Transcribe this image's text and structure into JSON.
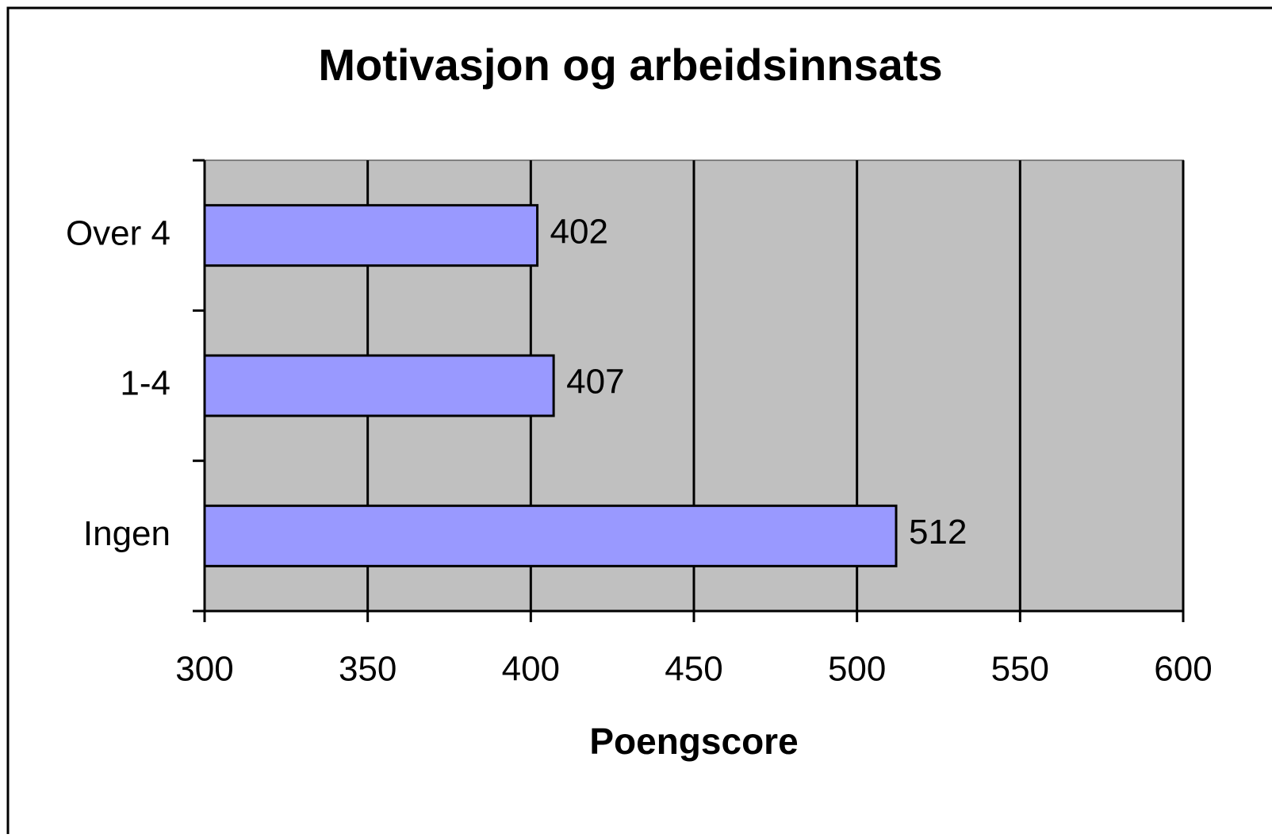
{
  "chart_data": {
    "type": "bar",
    "orientation": "horizontal",
    "title": "Motivasjon og arbeidsinnsats",
    "categories": [
      "Over 4",
      "1-4",
      "Ingen"
    ],
    "values": [
      402,
      407,
      512
    ],
    "color": "#9999ff",
    "xlabel": "Poengscore",
    "xlim": [
      300,
      600
    ],
    "xticks": [
      300,
      350,
      400,
      450,
      500,
      550,
      600
    ],
    "grid": true,
    "background": "#c0c0c0"
  }
}
